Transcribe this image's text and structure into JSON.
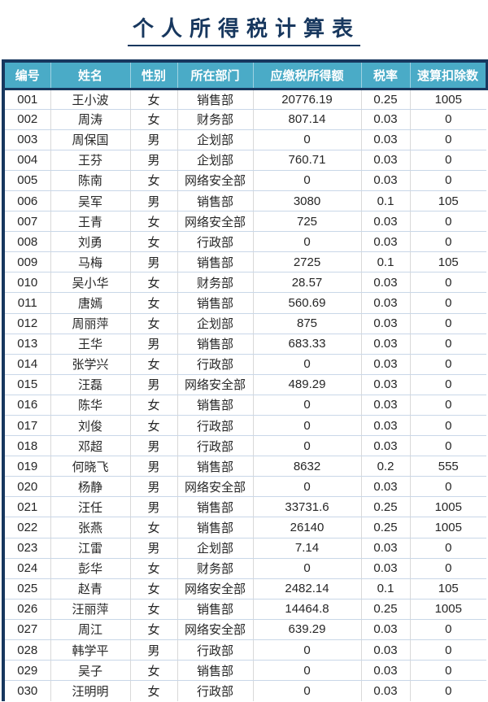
{
  "title": "个人所得税计算表",
  "colors": {
    "title_text": "#17375E",
    "header_background": "#4AABC7",
    "header_text": "#FFFFFF",
    "dark_border": "#17375E",
    "row_divider": "#C9D7E8",
    "column_divider": "#D9D9D9",
    "body_text": "#262626"
  },
  "table": {
    "columns": [
      "编号",
      "姓名",
      "性别",
      "所在部门",
      "应缴税所得额",
      "税率",
      "速算扣除数"
    ],
    "column_keys": [
      "id",
      "name",
      "gender",
      "department",
      "taxable-income",
      "tax-rate",
      "quick-deduction"
    ],
    "rows": [
      [
        "001",
        "王小波",
        "女",
        "销售部",
        "20776.19",
        "0.25",
        "1005"
      ],
      [
        "002",
        "周涛",
        "女",
        "财务部",
        "807.14",
        "0.03",
        "0"
      ],
      [
        "003",
        "周保国",
        "男",
        "企划部",
        "0",
        "0.03",
        "0"
      ],
      [
        "004",
        "王芬",
        "男",
        "企划部",
        "760.71",
        "0.03",
        "0"
      ],
      [
        "005",
        "陈南",
        "女",
        "网络安全部",
        "0",
        "0.03",
        "0"
      ],
      [
        "006",
        "吴军",
        "男",
        "销售部",
        "3080",
        "0.1",
        "105"
      ],
      [
        "007",
        "王青",
        "女",
        "网络安全部",
        "725",
        "0.03",
        "0"
      ],
      [
        "008",
        "刘勇",
        "女",
        "行政部",
        "0",
        "0.03",
        "0"
      ],
      [
        "009",
        "马梅",
        "男",
        "销售部",
        "2725",
        "0.1",
        "105"
      ],
      [
        "010",
        "吴小华",
        "女",
        "财务部",
        "28.57",
        "0.03",
        "0"
      ],
      [
        "011",
        "唐嫣",
        "女",
        "销售部",
        "560.69",
        "0.03",
        "0"
      ],
      [
        "012",
        "周丽萍",
        "女",
        "企划部",
        "875",
        "0.03",
        "0"
      ],
      [
        "013",
        "王华",
        "男",
        "销售部",
        "683.33",
        "0.03",
        "0"
      ],
      [
        "014",
        "张学兴",
        "女",
        "行政部",
        "0",
        "0.03",
        "0"
      ],
      [
        "015",
        "汪磊",
        "男",
        "网络安全部",
        "489.29",
        "0.03",
        "0"
      ],
      [
        "016",
        "陈华",
        "女",
        "销售部",
        "0",
        "0.03",
        "0"
      ],
      [
        "017",
        "刘俊",
        "女",
        "行政部",
        "0",
        "0.03",
        "0"
      ],
      [
        "018",
        "邓超",
        "男",
        "行政部",
        "0",
        "0.03",
        "0"
      ],
      [
        "019",
        "何晓飞",
        "男",
        "销售部",
        "8632",
        "0.2",
        "555"
      ],
      [
        "020",
        "杨静",
        "男",
        "网络安全部",
        "0",
        "0.03",
        "0"
      ],
      [
        "021",
        "汪任",
        "男",
        "销售部",
        "33731.6",
        "0.25",
        "1005"
      ],
      [
        "022",
        "张燕",
        "女",
        "销售部",
        "26140",
        "0.25",
        "1005"
      ],
      [
        "023",
        "江雷",
        "男",
        "企划部",
        "7.14",
        "0.03",
        "0"
      ],
      [
        "024",
        "彭华",
        "女",
        "财务部",
        "0",
        "0.03",
        "0"
      ],
      [
        "025",
        "赵青",
        "女",
        "网络安全部",
        "2482.14",
        "0.1",
        "105"
      ],
      [
        "026",
        "汪丽萍",
        "女",
        "销售部",
        "14464.8",
        "0.25",
        "1005"
      ],
      [
        "027",
        "周江",
        "女",
        "网络安全部",
        "639.29",
        "0.03",
        "0"
      ],
      [
        "028",
        "韩学平",
        "男",
        "行政部",
        "0",
        "0.03",
        "0"
      ],
      [
        "029",
        "吴子",
        "女",
        "销售部",
        "0",
        "0.03",
        "0"
      ],
      [
        "030",
        "汪明明",
        "女",
        "行政部",
        "0",
        "0.03",
        "0"
      ]
    ]
  }
}
